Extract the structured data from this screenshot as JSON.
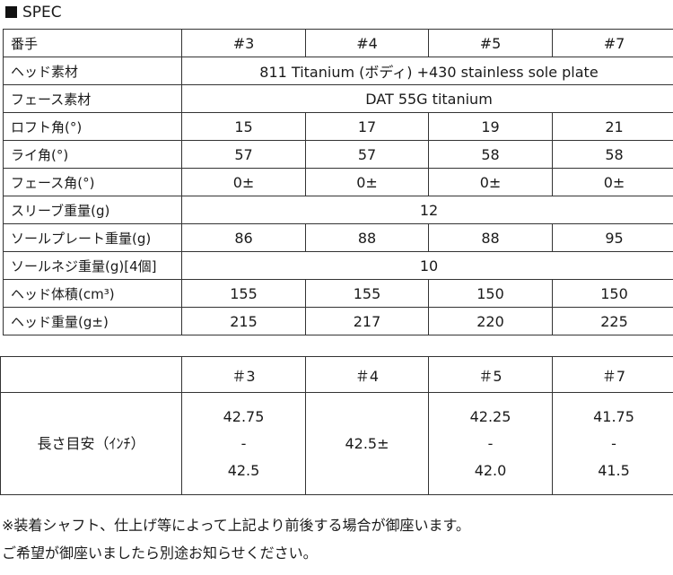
{
  "title": "SPEC",
  "spec": {
    "header": [
      "番手",
      "#3",
      "#4",
      "#5",
      "#7"
    ],
    "rows": [
      {
        "label": "ヘッド素材",
        "span": "811 Titanium (ボディ) +430 stainless sole plate"
      },
      {
        "label": "フェース素材",
        "span": "DAT 55G titanium"
      },
      {
        "label": "ロフト角(°)",
        "values": [
          "15",
          "17",
          "19",
          "21"
        ]
      },
      {
        "label": "ライ角(°)",
        "values": [
          "57",
          "57",
          "58",
          "58"
        ]
      },
      {
        "label": "フェース角(°)",
        "values": [
          "0±",
          "0±",
          "0±",
          "0±"
        ]
      },
      {
        "label": "スリーブ重量(g)",
        "span": "12"
      },
      {
        "label": "ソールプレート重量(g)",
        "values": [
          "86",
          "88",
          "88",
          "95"
        ]
      },
      {
        "label": "ソールネジ重量(g)[4個]",
        "span": "10"
      },
      {
        "label": "ヘッド体積(cm³)",
        "values": [
          "155",
          "155",
          "150",
          "150"
        ]
      },
      {
        "label": "ヘッド重量(g±)",
        "values": [
          "215",
          "217",
          "220",
          "225"
        ]
      }
    ]
  },
  "length": {
    "header": [
      "",
      "＃3",
      "＃4",
      "＃5",
      "＃7"
    ],
    "label": "長さ目安（ｲﾝﾁ）",
    "values": [
      [
        "42.75",
        "-",
        "42.5"
      ],
      [
        "42.5±"
      ],
      [
        "42.25",
        "-",
        "42.0"
      ],
      [
        "41.75",
        "-",
        "41.5"
      ]
    ]
  },
  "notes": [
    "※装着シャフト、仕上げ等によって上記より前後する場合が御座います。",
    "ご希望が御座いましたら別途お知らせください。"
  ]
}
